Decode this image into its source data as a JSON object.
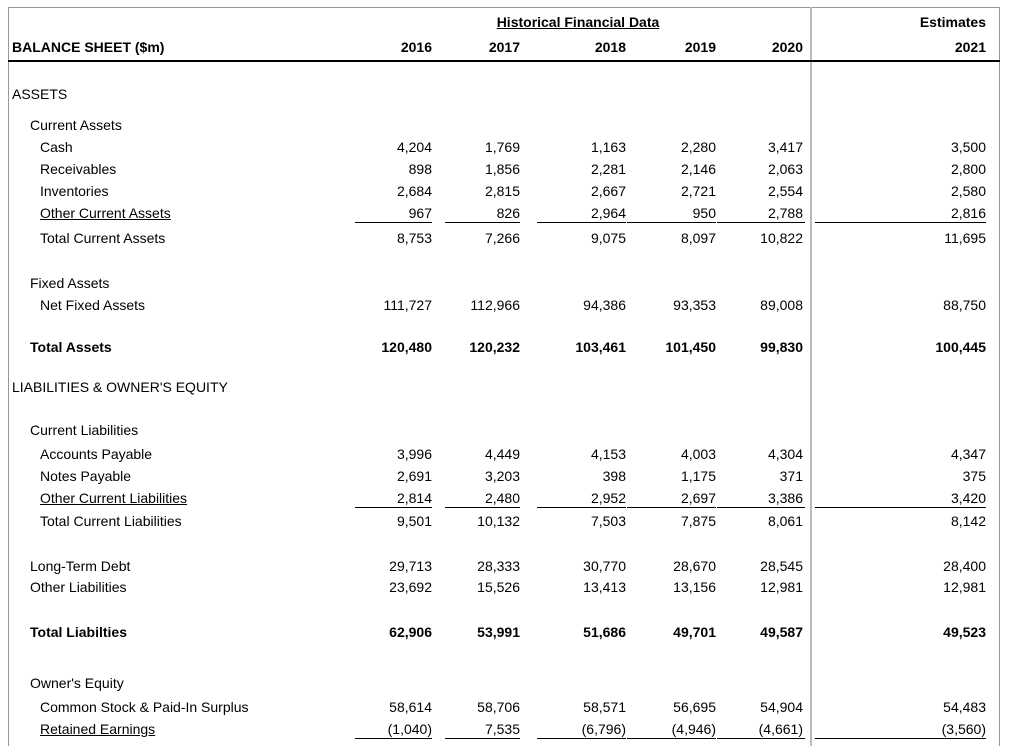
{
  "header": {
    "group_title": "Historical Financial Data",
    "estimates_title": "Estimates",
    "sheet_title": "BALANCE SHEET ($m)",
    "years": [
      "2016",
      "2017",
      "2018",
      "2019",
      "2020",
      "2021"
    ]
  },
  "rows": [
    {
      "label": "ASSETS"
    },
    {
      "label": "Current Assets"
    },
    {
      "label": "Cash",
      "values": [
        "4,204",
        "1,769",
        "1,163",
        "2,280",
        "3,417",
        "3,500"
      ]
    },
    {
      "label": "Receivables",
      "values": [
        "898",
        "1,856",
        "2,281",
        "2,146",
        "2,063",
        "2,800"
      ]
    },
    {
      "label": "Inventories",
      "values": [
        "2,684",
        "2,815",
        "2,667",
        "2,721",
        "2,554",
        "2,580"
      ]
    },
    {
      "label": "Other Current Assets",
      "values": [
        "967",
        "826",
        "2,964",
        "950",
        "2,788",
        "2,816"
      ]
    },
    {
      "label": "Total Current Assets",
      "values": [
        "8,753",
        "7,266",
        "9,075",
        "8,097",
        "10,822",
        "11,695"
      ]
    },
    {
      "label": "Fixed Assets"
    },
    {
      "label": "Net Fixed Assets",
      "values": [
        "111,727",
        "112,966",
        "94,386",
        "93,353",
        "89,008",
        "88,750"
      ]
    },
    {
      "label": "Total Assets",
      "values": [
        "120,480",
        "120,232",
        "103,461",
        "101,450",
        "99,830",
        "100,445"
      ]
    },
    {
      "label": "LIABILITIES & OWNER'S EQUITY"
    },
    {
      "label": "Current Liabilities"
    },
    {
      "label": "Accounts Payable",
      "values": [
        "3,996",
        "4,449",
        "4,153",
        "4,003",
        "4,304",
        "4,347"
      ]
    },
    {
      "label": "Notes Payable",
      "values": [
        "2,691",
        "3,203",
        "398",
        "1,175",
        "371",
        "375"
      ]
    },
    {
      "label": "Other Current Liabilities",
      "values": [
        "2,814",
        "2,480",
        "2,952",
        "2,697",
        "3,386",
        "3,420"
      ]
    },
    {
      "label": "Total Current Liabilities",
      "values": [
        "9,501",
        "10,132",
        "7,503",
        "7,875",
        "8,061",
        "8,142"
      ]
    },
    {
      "label": "Long-Term Debt",
      "values": [
        "29,713",
        "28,333",
        "30,770",
        "28,670",
        "28,545",
        "28,400"
      ]
    },
    {
      "label": "Other Liabilities",
      "values": [
        "23,692",
        "15,526",
        "13,413",
        "13,156",
        "12,981",
        "12,981"
      ]
    },
    {
      "label": "Total Liabilties",
      "values": [
        "62,906",
        "53,991",
        "51,686",
        "49,701",
        "49,587",
        "49,523"
      ]
    },
    {
      "label": "Owner's Equity"
    },
    {
      "label": "Common Stock & Paid-In Surplus",
      "values": [
        "58,614",
        "58,706",
        "58,571",
        "56,695",
        "54,904",
        "54,483"
      ]
    },
    {
      "label": "Retained Earnings",
      "values": [
        "(1,040)",
        "7,535",
        "(6,796)",
        "(4,946)",
        "(4,661)",
        "(3,560)"
      ]
    }
  ]
}
